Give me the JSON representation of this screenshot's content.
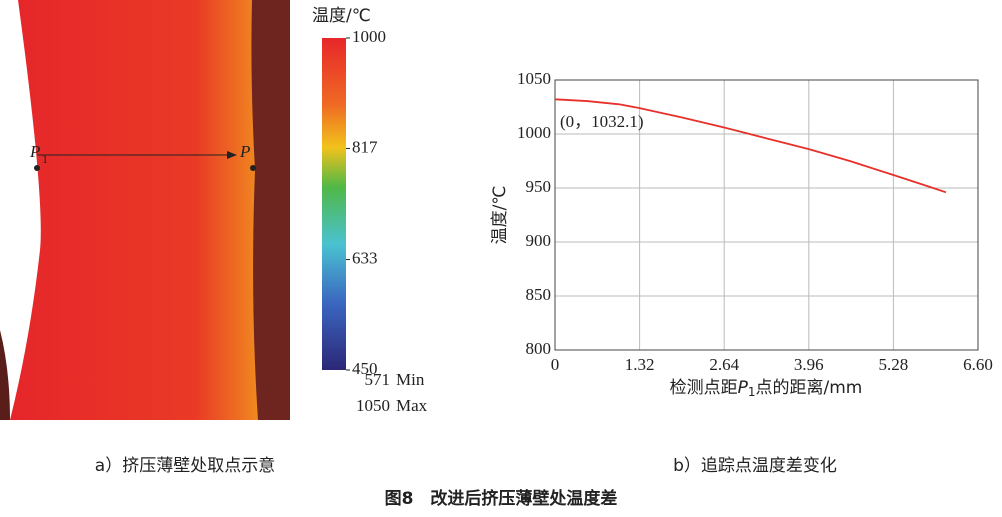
{
  "panel_a": {
    "colorbar": {
      "title": "温度/℃",
      "ticks": [
        1000,
        817,
        633,
        450
      ],
      "lim": [
        450,
        1000
      ]
    },
    "stats": [
      {
        "value": 571,
        "label": "Min"
      },
      {
        "value": 1050,
        "label": "Max"
      }
    ],
    "point_left": {
      "letter": "P",
      "sub": "1"
    },
    "point_right": {
      "letter": "P"
    },
    "caption": "a）挤压薄壁处取点示意"
  },
  "chart_data": {
    "type": "line",
    "x": [
      0,
      0.5,
      1.0,
      1.32,
      2.0,
      2.64,
      3.3,
      3.96,
      4.6,
      5.28,
      5.9,
      6.1
    ],
    "values": [
      1032.1,
      1030.5,
      1027.5,
      1024,
      1015,
      1006,
      996,
      986,
      975,
      962,
      950,
      946
    ],
    "color": "#e8302a",
    "annotation": "(0，1032.1)",
    "xlabel": {
      "before": "检测点距",
      "letter": "P",
      "sub": "1",
      "after": "点的距离/mm"
    },
    "ylabel": "温度/℃",
    "xlim": [
      0,
      6.6
    ],
    "xticks": [
      0,
      1.32,
      2.64,
      3.96,
      5.28,
      {
        "value": 6.6,
        "label": "6.60"
      }
    ],
    "ylim": [
      800,
      1050
    ],
    "yticks": [
      800,
      850,
      900,
      950,
      1000,
      1050
    ],
    "grid": true,
    "caption": "b）追踪点温度差变化"
  },
  "figure_caption": "图8　改进后挤压薄壁处温度差"
}
